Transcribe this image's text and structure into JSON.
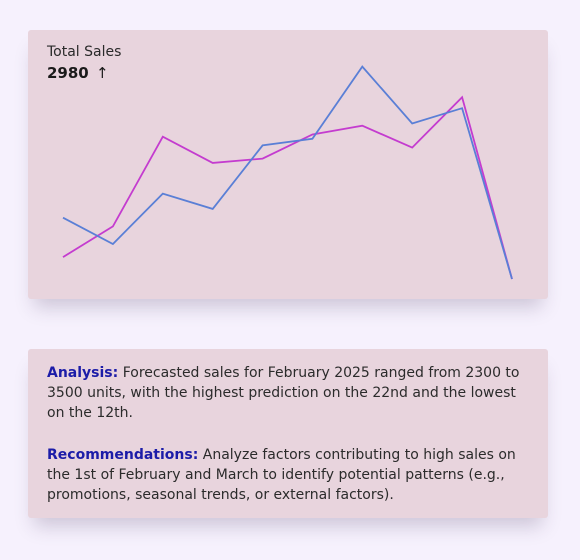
{
  "kpi": {
    "title": "Total Sales",
    "value": "2980",
    "trend_icon": "arrow-up-icon",
    "trend_glyph": "↑"
  },
  "colors": {
    "background": "#f6f1fd",
    "card": "#e8d4dd",
    "series_1": "#c43ccf",
    "series_2": "#5a7fd6",
    "lead_text": "#1c1ca8"
  },
  "chart_data": {
    "type": "line",
    "title": "",
    "xlabel": "",
    "ylabel": "",
    "grid": false,
    "legend": "none",
    "axes_visible": false,
    "x": [
      1,
      2,
      3,
      4,
      5,
      6,
      7,
      8,
      9,
      10
    ],
    "ylim": [
      0,
      100
    ],
    "series": [
      {
        "color": "#c43ccf",
        "values": [
          10,
          24,
          65,
          53,
          55,
          66,
          70,
          60,
          83,
          0
        ]
      },
      {
        "color": "#5a7fd6",
        "values": [
          28,
          16,
          39,
          32,
          61,
          64,
          97,
          71,
          78,
          0
        ]
      }
    ]
  },
  "analysis": {
    "lead": "Analysis:",
    "text": " Forecasted sales for February 2025 ranged from 2300 to 3500 units, with the highest prediction on the 22nd and the lowest on the 12th."
  },
  "recommendations": {
    "lead": "Recommendations:",
    "text": " Analyze factors contributing to high sales on the 1st of February and March to identify potential patterns (e.g., promotions, seasonal trends, or external factors)."
  }
}
